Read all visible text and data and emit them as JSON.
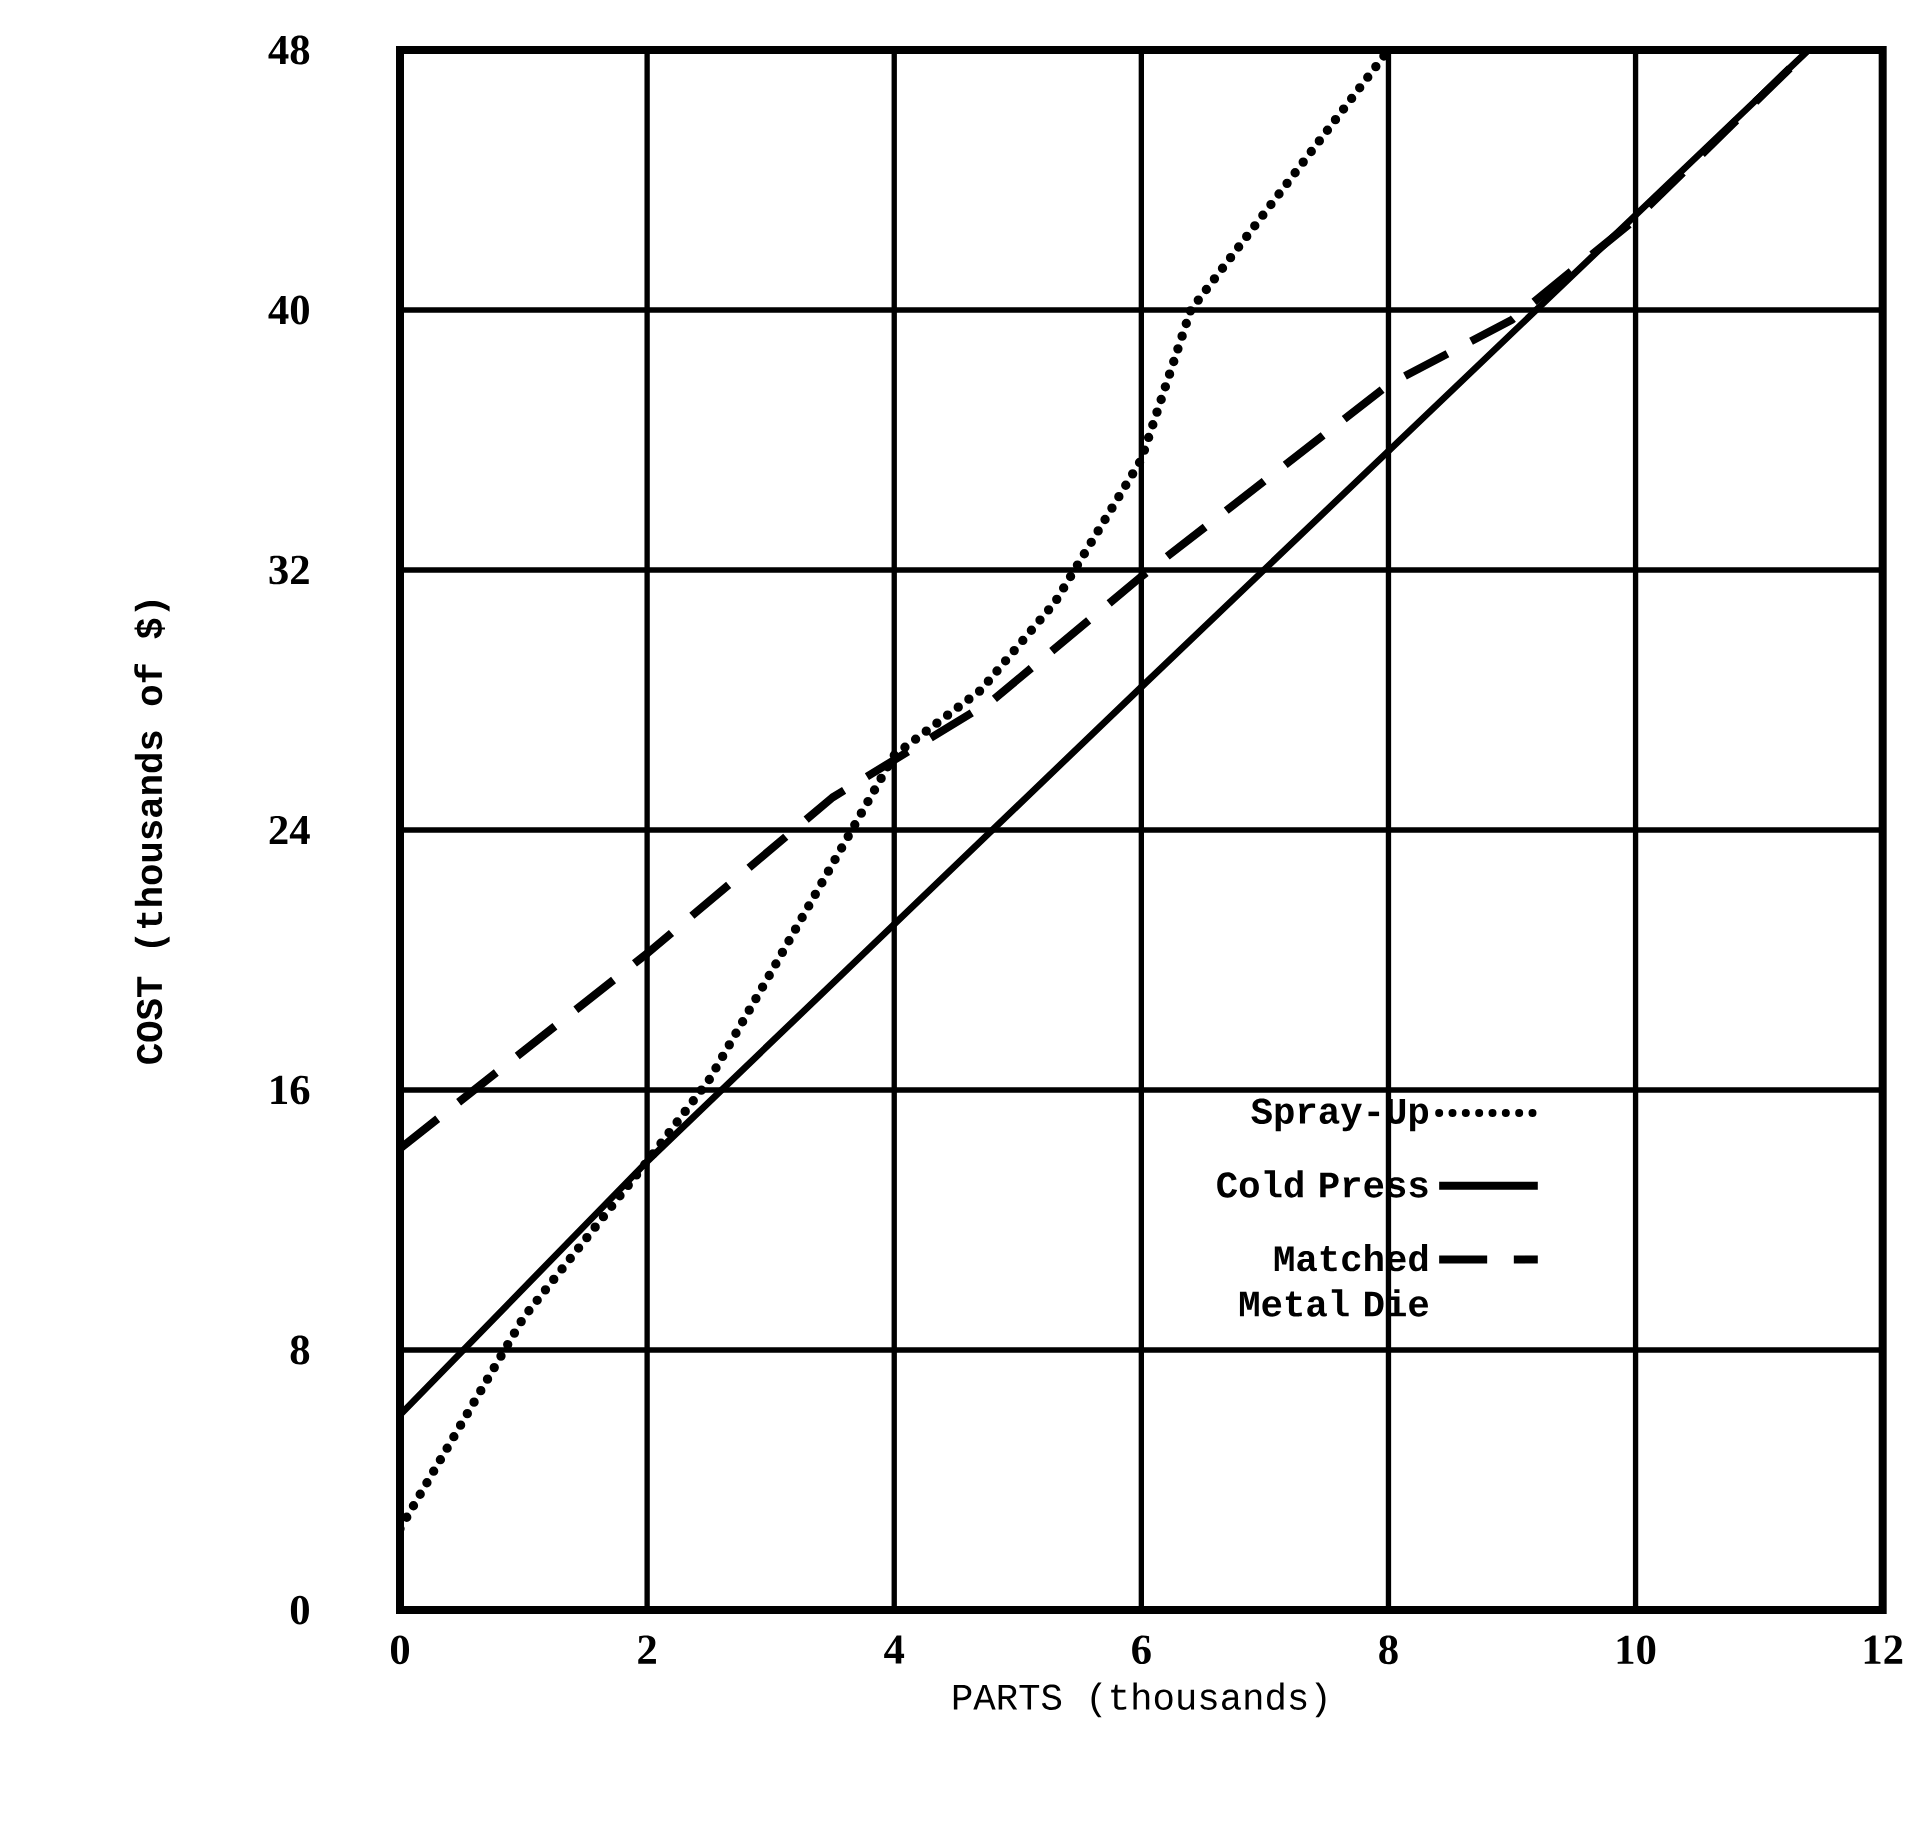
{
  "chart_data": {
    "type": "line",
    "xlabel": "PARTS (thousands)",
    "ylabel": "COST (thousands of $)",
    "xlim": [
      0,
      12
    ],
    "ylim": [
      0,
      48
    ],
    "xticks": [
      0,
      2,
      4,
      6,
      8,
      10,
      12
    ],
    "yticks": [
      0,
      8,
      16,
      24,
      32,
      40,
      48
    ],
    "grid": true,
    "legend": "bottom right",
    "marker": "none",
    "series": [
      {
        "name": "Spray-Up",
        "color": "#000000",
        "line_style": "dotted",
        "x": [
          0,
          1,
          2,
          2.5,
          3,
          4,
          4.7,
          5.3,
          6,
          6.4,
          8
        ],
        "values": [
          2.5,
          9,
          13.8,
          16.3,
          19.6,
          26.3,
          28.3,
          31,
          35.4,
          40,
          48
        ]
      },
      {
        "name": "Cold Press",
        "color": "#000000",
        "line_style": "solid",
        "x": [
          0,
          2,
          6,
          11.4
        ],
        "values": [
          6,
          13.8,
          28.4,
          48
        ]
      },
      {
        "name": "Matched Metal Die",
        "color": "#000000",
        "line_style": "dashed",
        "x": [
          0,
          2,
          3.5,
          4.8,
          6,
          8,
          9,
          10,
          11.4
        ],
        "values": [
          14.2,
          20.2,
          25,
          28,
          31.8,
          37.7,
          39.7,
          42.8,
          48
        ]
      }
    ]
  }
}
